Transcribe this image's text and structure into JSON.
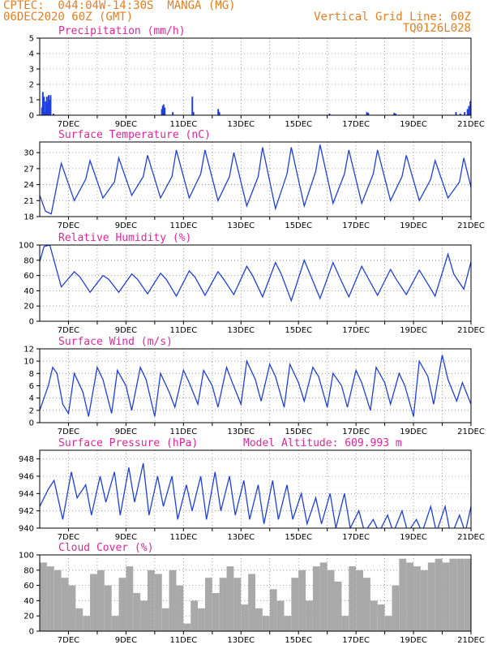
{
  "header": {
    "station": "CPTEC:  044:04W-14:30S  MANGA (MG)",
    "datetime": "06DEC2020 60Z (GMT)",
    "grid_note": "Vertical Grid Line: 60Z",
    "code": "TQ0126L028"
  },
  "chart_data": [
    {
      "type": "bar",
      "title": "Precipitation (mm/h)",
      "color": "#1f3fe0",
      "ylim": [
        0,
        5
      ],
      "yticks": [
        0,
        1,
        2,
        3,
        4,
        5
      ],
      "xlim": [
        0,
        15
      ],
      "xticks": [
        "7DEC",
        "9DEC",
        "11DEC",
        "13DEC",
        "15DEC",
        "17DEC",
        "19DEC",
        "21DEC"
      ],
      "x": [
        0.05,
        0.08,
        0.12,
        0.15,
        0.18,
        0.22,
        0.25,
        0.28,
        0.32,
        0.35,
        0.45,
        4.22,
        4.25,
        4.28,
        4.32,
        4.6,
        5.28,
        5.32,
        6.18,
        6.22,
        10.05,
        11.35,
        11.4,
        12.3,
        12.35,
        14.45,
        14.6,
        14.75,
        14.85,
        14.9,
        14.95,
        14.98
      ],
      "values": [
        0.5,
        1.5,
        1.2,
        0.2,
        0.9,
        1.2,
        0.8,
        1.3,
        1.0,
        1.3,
        0.1,
        0.4,
        0.6,
        0.7,
        0.5,
        0.2,
        1.2,
        0.2,
        0.4,
        0.2,
        0.1,
        0.2,
        0.15,
        0.15,
        0.1,
        0.2,
        0.1,
        0.2,
        0.4,
        0.6,
        0.9,
        1.0
      ]
    },
    {
      "type": "line",
      "title": "Surface Temperature (nC)",
      "color": "#1f3fe0",
      "ylim": [
        18,
        32
      ],
      "yticks": [
        18,
        21,
        24,
        27,
        30
      ],
      "xlim": [
        0,
        15
      ],
      "xticks": [
        "7DEC",
        "9DEC",
        "11DEC",
        "13DEC",
        "15DEC",
        "17DEC",
        "19DEC",
        "21DEC"
      ],
      "x": [
        0,
        0.2,
        0.4,
        0.75,
        1.2,
        1.6,
        1.75,
        2.2,
        2.6,
        2.75,
        3.2,
        3.6,
        3.75,
        4.2,
        4.6,
        4.75,
        5.2,
        5.6,
        5.75,
        6.2,
        6.6,
        6.75,
        7.2,
        7.6,
        7.75,
        8.2,
        8.6,
        8.75,
        9.2,
        9.6,
        9.75,
        10.2,
        10.6,
        10.75,
        11.2,
        11.6,
        11.75,
        12.2,
        12.6,
        12.75,
        13.2,
        13.6,
        13.75,
        14.2,
        14.6,
        14.75,
        15
      ],
      "y": [
        22,
        19,
        18.5,
        28,
        21,
        25,
        28.5,
        21.5,
        24.5,
        29,
        22,
        25.5,
        29.5,
        21.5,
        25.5,
        30.5,
        21.5,
        26,
        30.5,
        21,
        25.5,
        30,
        20,
        25.5,
        31,
        19.5,
        26,
        31,
        20,
        26.5,
        31.5,
        20.5,
        26,
        30.5,
        20.5,
        26,
        30.5,
        21,
        25.5,
        29.5,
        21,
        25,
        28.5,
        21.5,
        24.5,
        29,
        23.5
      ]
    },
    {
      "type": "line",
      "title": "Relative Humidity (%)",
      "color": "#1f3fe0",
      "ylim": [
        0,
        100
      ],
      "yticks": [
        0,
        20,
        40,
        60,
        80,
        100
      ],
      "xlim": [
        0,
        15
      ],
      "xticks": [
        "7DEC",
        "9DEC",
        "11DEC",
        "13DEC",
        "15DEC",
        "17DEC",
        "19DEC",
        "21DEC"
      ],
      "x": [
        0,
        0.15,
        0.35,
        0.75,
        1.2,
        1.4,
        1.75,
        2.2,
        2.4,
        2.75,
        3.2,
        3.4,
        3.75,
        4.2,
        4.4,
        4.75,
        5.2,
        5.4,
        5.75,
        6.2,
        6.4,
        6.75,
        7.2,
        7.4,
        7.75,
        8.2,
        8.4,
        8.75,
        9.2,
        9.4,
        9.75,
        10.2,
        10.4,
        10.75,
        11.2,
        11.4,
        11.75,
        12.2,
        12.4,
        12.75,
        13.2,
        13.4,
        13.75,
        14.2,
        14.4,
        14.75,
        15
      ],
      "y": [
        78,
        98,
        100,
        45,
        65,
        58,
        38,
        60,
        55,
        38,
        62,
        55,
        36,
        63,
        55,
        33,
        66,
        58,
        34,
        65,
        55,
        35,
        72,
        60,
        32,
        77,
        62,
        27,
        80,
        62,
        30,
        77,
        60,
        32,
        72,
        58,
        34,
        68,
        55,
        35,
        67,
        55,
        33,
        88,
        62,
        42,
        78
      ]
    },
    {
      "type": "line",
      "title": "Surface Wind (m/s)",
      "color": "#1f3fe0",
      "ylim": [
        0,
        12
      ],
      "yticks": [
        0,
        2,
        4,
        6,
        8,
        10,
        12
      ],
      "xlim": [
        0,
        15
      ],
      "xticks": [
        "7DEC",
        "9DEC",
        "11DEC",
        "13DEC",
        "15DEC",
        "17DEC",
        "19DEC",
        "21DEC"
      ],
      "x": [
        0,
        0.3,
        0.45,
        0.6,
        0.8,
        1.0,
        1.2,
        1.5,
        1.7,
        2.0,
        2.2,
        2.5,
        2.7,
        3.0,
        3.2,
        3.5,
        3.7,
        4.0,
        4.2,
        4.5,
        4.7,
        5.0,
        5.2,
        5.5,
        5.7,
        6.0,
        6.2,
        6.5,
        6.7,
        7.0,
        7.2,
        7.5,
        7.7,
        8.0,
        8.2,
        8.5,
        8.7,
        9.0,
        9.2,
        9.5,
        9.7,
        10.0,
        10.2,
        10.5,
        10.7,
        11.0,
        11.2,
        11.5,
        11.7,
        12.0,
        12.2,
        12.5,
        12.7,
        13.0,
        13.2,
        13.5,
        13.7,
        14.0,
        14.2,
        14.5,
        14.7,
        15
      ],
      "y": [
        2,
        6,
        9,
        8,
        3,
        1.5,
        8,
        5,
        1,
        9,
        7,
        1.5,
        8.5,
        6,
        2,
        9,
        7,
        1,
        8,
        5,
        2.5,
        8.5,
        6.5,
        3,
        8.5,
        6,
        2.5,
        9,
        6.5,
        3,
        10,
        7,
        3.5,
        9.5,
        7.5,
        2.5,
        9.5,
        6.5,
        3.5,
        9,
        7.5,
        2.5,
        8,
        6,
        2.5,
        8.5,
        6.5,
        2,
        9,
        6.5,
        3,
        8,
        6,
        1,
        10,
        7.5,
        3,
        11,
        7,
        3.5,
        6.5,
        3
      ]
    },
    {
      "type": "line",
      "title": "Surface Pressure (hPa)",
      "subtitle": "Model Altitude: 609.993 m",
      "color": "#1f3fe0",
      "ylim": [
        940,
        949
      ],
      "yticks": [
        940,
        942,
        944,
        946,
        948
      ],
      "xlim": [
        0,
        15
      ],
      "xticks": [
        "7DEC",
        "9DEC",
        "11DEC",
        "13DEC",
        "15DEC",
        "17DEC",
        "19DEC",
        "21DEC"
      ],
      "x": [
        0,
        0.3,
        0.5,
        0.8,
        1.1,
        1.3,
        1.6,
        1.8,
        2.1,
        2.3,
        2.6,
        2.8,
        3.1,
        3.3,
        3.6,
        3.8,
        4.1,
        4.3,
        4.6,
        4.8,
        5.1,
        5.3,
        5.6,
        5.8,
        6.1,
        6.3,
        6.6,
        6.8,
        7.1,
        7.3,
        7.6,
        7.8,
        8.1,
        8.3,
        8.6,
        8.8,
        9.1,
        9.3,
        9.6,
        9.8,
        10.1,
        10.3,
        10.6,
        10.8,
        11.1,
        11.3,
        11.6,
        11.8,
        12.1,
        12.3,
        12.6,
        12.8,
        13.1,
        13.3,
        13.6,
        13.8,
        14.1,
        14.3,
        14.6,
        14.8,
        15
      ],
      "y": [
        942.5,
        944.5,
        945.5,
        941,
        946.5,
        943.5,
        945,
        941.5,
        946,
        943,
        946.5,
        941.5,
        947,
        943,
        947.5,
        941.5,
        946,
        942.5,
        946,
        941,
        945,
        942,
        946,
        941,
        946.5,
        942,
        946,
        941.5,
        945.5,
        941,
        945,
        940.5,
        945.5,
        941,
        945,
        941,
        944,
        940.5,
        943.5,
        940.5,
        944,
        940,
        944,
        940,
        942,
        939.5,
        941,
        939.5,
        941.5,
        939.5,
        942,
        939.5,
        941,
        939.5,
        942.5,
        939.5,
        942.5,
        939,
        941.5,
        939.5,
        942.5
      ]
    },
    {
      "type": "bar",
      "title": "Cloud Cover (%)",
      "color": "#a9a9a9",
      "ylim": [
        0,
        100
      ],
      "yticks": [
        0,
        20,
        40,
        60,
        80,
        100
      ],
      "xlim": [
        0,
        15
      ],
      "xticks": [
        "7DEC",
        "9DEC",
        "11DEC",
        "13DEC",
        "15DEC",
        "17DEC",
        "19DEC",
        "21DEC"
      ],
      "x": [
        0.0,
        0.25,
        0.5,
        0.75,
        1.0,
        1.25,
        1.5,
        1.75,
        2.0,
        2.25,
        2.5,
        2.75,
        3.0,
        3.25,
        3.5,
        3.75,
        4.0,
        4.25,
        4.5,
        4.75,
        5.0,
        5.25,
        5.5,
        5.75,
        6.0,
        6.25,
        6.5,
        6.75,
        7.0,
        7.25,
        7.5,
        7.75,
        8.0,
        8.25,
        8.5,
        8.75,
        9.0,
        9.25,
        9.5,
        9.75,
        10.0,
        10.25,
        10.5,
        10.75,
        11.0,
        11.25,
        11.5,
        11.75,
        12.0,
        12.25,
        12.5,
        12.75,
        13.0,
        13.25,
        13.5,
        13.75,
        14.0,
        14.25,
        14.5,
        14.75
      ],
      "values": [
        90,
        85,
        80,
        70,
        60,
        30,
        20,
        75,
        80,
        60,
        20,
        70,
        85,
        50,
        40,
        80,
        75,
        30,
        80,
        60,
        10,
        40,
        30,
        70,
        50,
        70,
        85,
        70,
        35,
        75,
        30,
        20,
        55,
        40,
        20,
        70,
        80,
        40,
        85,
        90,
        80,
        65,
        20,
        85,
        80,
        70,
        40,
        35,
        20,
        60,
        95,
        90,
        85,
        80,
        90,
        95,
        90,
        95,
        95,
        95
      ]
    }
  ]
}
